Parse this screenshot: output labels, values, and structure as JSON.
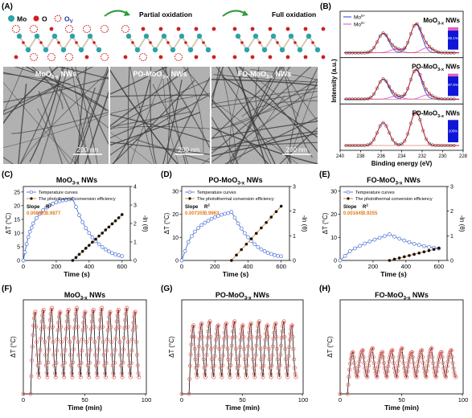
{
  "panel_letters": {
    "a": "(A)",
    "b": "(B)",
    "c": "(C)",
    "d": "(D)",
    "e": "(E)",
    "f": "(F)",
    "g": "(G)",
    "h": "(H)"
  },
  "schematic": {
    "legend_mo": "Mo",
    "legend_o": "O",
    "legend_ov": "O",
    "legend_ov_sub": "V",
    "step_partial": "Partial oxidation",
    "step_full": "Full oxidation"
  },
  "tem": {
    "images": [
      {
        "label_main": "MoO",
        "label_sub": "3-x",
        "label_tail": " NWs",
        "scale": "200 nm"
      },
      {
        "label_main": "PO-MoO",
        "label_sub": "3-x",
        "label_tail": " NWs",
        "scale": "200 nm"
      },
      {
        "label_main": "FO-MoO",
        "label_sub": "3-x",
        "label_tail": " NWs",
        "scale": "200 nm"
      }
    ]
  },
  "xps": {
    "ylabel": "Intensity (a.u.)",
    "xlabel": "Binding energy (eV)",
    "legend": [
      "Mo",
      "Mo"
    ],
    "legend_sup": [
      "6+",
      "5+"
    ],
    "x_ticks": [
      "240",
      "238",
      "236",
      "234",
      "232",
      "230",
      "228"
    ],
    "panels": [
      {
        "title_main": "MoO",
        "title_sub": "3-x",
        "title_tail": " NWs",
        "percent": "85.1%"
      },
      {
        "title_main": "PO-MoO",
        "title_sub": "3-x",
        "title_tail": " NWs",
        "percent": "87.5%"
      },
      {
        "title_main": "FO-MoO",
        "title_sub": "3-x",
        "title_tail": " NWs",
        "percent": "100%"
      }
    ]
  },
  "photothermal": {
    "xlabel": "Time (s)",
    "ylabel_left": "ΔT (°C)",
    "ylabel_right": "-ln (θ)",
    "legend_temp": "Temperature curves",
    "legend_eff": "The photothermal conversion efficiency",
    "slope_label": "Slope",
    "r2_label": "R",
    "r2_sup": "2",
    "x_ticks": [
      "0",
      "200",
      "400",
      "600"
    ],
    "panels": [
      {
        "title_main": "MoO",
        "title_sub": "3-x",
        "title_tail": " NWs",
        "slope": "0.008663",
        "r2": "0.9877",
        "y_ticks": [
          "0",
          "5",
          "10",
          "15",
          "20",
          "25"
        ],
        "y2_ticks": [
          "0",
          "1",
          "2",
          "3",
          "4"
        ]
      },
      {
        "title_main": "PO-MoO",
        "title_sub": "3-x",
        "title_tail": " NWs",
        "slope": "0.007355",
        "r2": "0.9963",
        "y_ticks": [
          "0",
          "10",
          "20",
          "30"
        ],
        "y2_ticks": [
          "0",
          "1",
          "2",
          "3"
        ]
      },
      {
        "title_main": "FO-MoO",
        "title_sub": "3-x",
        "title_tail": " NWs",
        "slope": "0.001645",
        "r2": "0.9255",
        "y_ticks": [
          "0",
          "10",
          "20",
          "30"
        ],
        "y2_ticks": [
          "0",
          "1",
          "2",
          "3"
        ]
      }
    ]
  },
  "cycling": {
    "xlabel": "Time (min)",
    "ylabel": "ΔT (°C)",
    "x_ticks": [
      "0",
      "50",
      "100"
    ],
    "panels": [
      {
        "title_main": "MoO",
        "title_sub": "3-x",
        "title_tail": " NWs"
      },
      {
        "title_main": "PO-MoO",
        "title_sub": "3-x",
        "title_tail": " NWs"
      },
      {
        "title_main": "FO-MoO",
        "title_sub": "3-x",
        "title_tail": " NWs"
      }
    ]
  },
  "chart_data": [
    {
      "type": "line",
      "panel": "C",
      "title": "MoO3-x NWs",
      "xlabel": "Time (s)",
      "ylabel": "ΔT (°C)",
      "y2label": "-ln (θ)",
      "xlim": [
        0,
        650
      ],
      "ylim": [
        0,
        27
      ],
      "y2lim": [
        0,
        4
      ],
      "series": [
        {
          "name": "Temperature curves",
          "x": [
            0,
            10,
            20,
            30,
            40,
            50,
            60,
            80,
            100,
            120,
            140,
            160,
            180,
            200,
            220,
            240,
            260,
            280,
            300,
            320,
            340,
            360,
            380,
            400,
            420,
            440,
            460,
            480,
            500,
            520,
            540,
            560,
            580,
            600
          ],
          "values": [
            0,
            3,
            6,
            8.5,
            10.5,
            12,
            13.5,
            15.5,
            17,
            18.3,
            19.3,
            20.1,
            20.7,
            21.2,
            21.6,
            21.9,
            22.1,
            22.3,
            22.5,
            19.5,
            16.5,
            14,
            11.8,
            10,
            8.4,
            7,
            5.9,
            4.9,
            4,
            3.3,
            2.7,
            2.2,
            1.9,
            1.6
          ]
        },
        {
          "name": "The photothermal conversion efficiency",
          "axis": "right",
          "x": [
            300,
            320,
            340,
            360,
            380,
            400,
            420,
            440,
            460,
            480,
            500,
            520,
            540,
            560,
            580,
            600
          ],
          "values": [
            0,
            0.16,
            0.33,
            0.49,
            0.66,
            0.82,
            0.99,
            1.15,
            1.32,
            1.48,
            1.65,
            1.81,
            1.98,
            2.14,
            2.31,
            2.48
          ]
        }
      ]
    },
    {
      "type": "line",
      "panel": "D",
      "title": "PO-MoO3-x NWs",
      "xlabel": "Time (s)",
      "ylabel": "ΔT (°C)",
      "y2label": "-ln (θ)",
      "xlim": [
        0,
        650
      ],
      "ylim": [
        0,
        32
      ],
      "y2lim": [
        0,
        3
      ],
      "series": [
        {
          "name": "Temperature curves",
          "x": [
            0,
            20,
            40,
            60,
            80,
            100,
            120,
            140,
            160,
            180,
            200,
            220,
            240,
            260,
            280,
            300,
            320,
            340,
            360,
            380,
            400,
            420,
            440,
            460,
            480,
            500,
            520,
            540,
            560,
            580,
            600
          ],
          "values": [
            0,
            4,
            8,
            10.5,
            12.5,
            14,
            15.3,
            16.3,
            17.2,
            18,
            18.7,
            19.3,
            19.8,
            20.2,
            20.5,
            21,
            18.5,
            16,
            13.8,
            11.8,
            10,
            8.4,
            7,
            5.8,
            4.8,
            4,
            3.3,
            2.8,
            2.3,
            2,
            1.8
          ]
        },
        {
          "name": "The photothermal conversion efficiency",
          "axis": "right",
          "x": [
            300,
            330,
            360,
            390,
            420,
            450,
            480,
            510,
            540,
            570,
            600
          ],
          "values": [
            0,
            0.22,
            0.44,
            0.66,
            0.88,
            1.1,
            1.32,
            1.54,
            1.76,
            1.98,
            2.2
          ]
        }
      ]
    },
    {
      "type": "line",
      "panel": "E",
      "title": "FO-MoO3-x NWs",
      "xlabel": "Time (s)",
      "ylabel": "ΔT (°C)",
      "y2label": "-ln (θ)",
      "xlim": [
        0,
        650
      ],
      "ylim": [
        0,
        32
      ],
      "y2lim": [
        0,
        3
      ],
      "series": [
        {
          "name": "Temperature curves",
          "x": [
            0,
            30,
            60,
            90,
            120,
            150,
            180,
            210,
            240,
            270,
            300,
            330,
            360,
            390,
            420,
            450,
            480,
            510,
            540,
            570,
            600
          ],
          "values": [
            0,
            2,
            4,
            5.2,
            6.3,
            7.3,
            8.2,
            9,
            9.8,
            10.5,
            11.3,
            10.3,
            9.4,
            8.6,
            7.9,
            7.2,
            6.7,
            6.2,
            5.8,
            5.5,
            5.2
          ]
        },
        {
          "name": "The photothermal conversion efficiency",
          "axis": "right",
          "x": [
            300,
            330,
            360,
            390,
            420,
            450,
            480,
            510,
            540,
            570,
            600
          ],
          "values": [
            0,
            0.05,
            0.1,
            0.15,
            0.2,
            0.25,
            0.3,
            0.35,
            0.4,
            0.45,
            0.5
          ]
        }
      ]
    },
    {
      "type": "line",
      "panel": "F",
      "title": "MoO3-x NWs",
      "xlabel": "Time (min)",
      "ylabel": "ΔT (°C)",
      "xlim": [
        0,
        100
      ],
      "ylim": [
        0,
        28
      ],
      "cycles": 13,
      "peak": 25,
      "trough": 5
    },
    {
      "type": "line",
      "panel": "G",
      "title": "PO-MoO3-x NWs",
      "xlabel": "Time (min)",
      "ylabel": "ΔT (°C)",
      "xlim": [
        0,
        100
      ],
      "ylim": [
        0,
        28
      ],
      "cycles": 13,
      "peak": 21,
      "trough": 5
    },
    {
      "type": "line",
      "panel": "H",
      "title": "FO-MoO3-x NWs",
      "xlabel": "Time (min)",
      "ylabel": "ΔT (°C)",
      "xlim": [
        0,
        100
      ],
      "ylim": [
        0,
        28
      ],
      "cycles": 11,
      "peak": 13,
      "trough": 5
    }
  ]
}
